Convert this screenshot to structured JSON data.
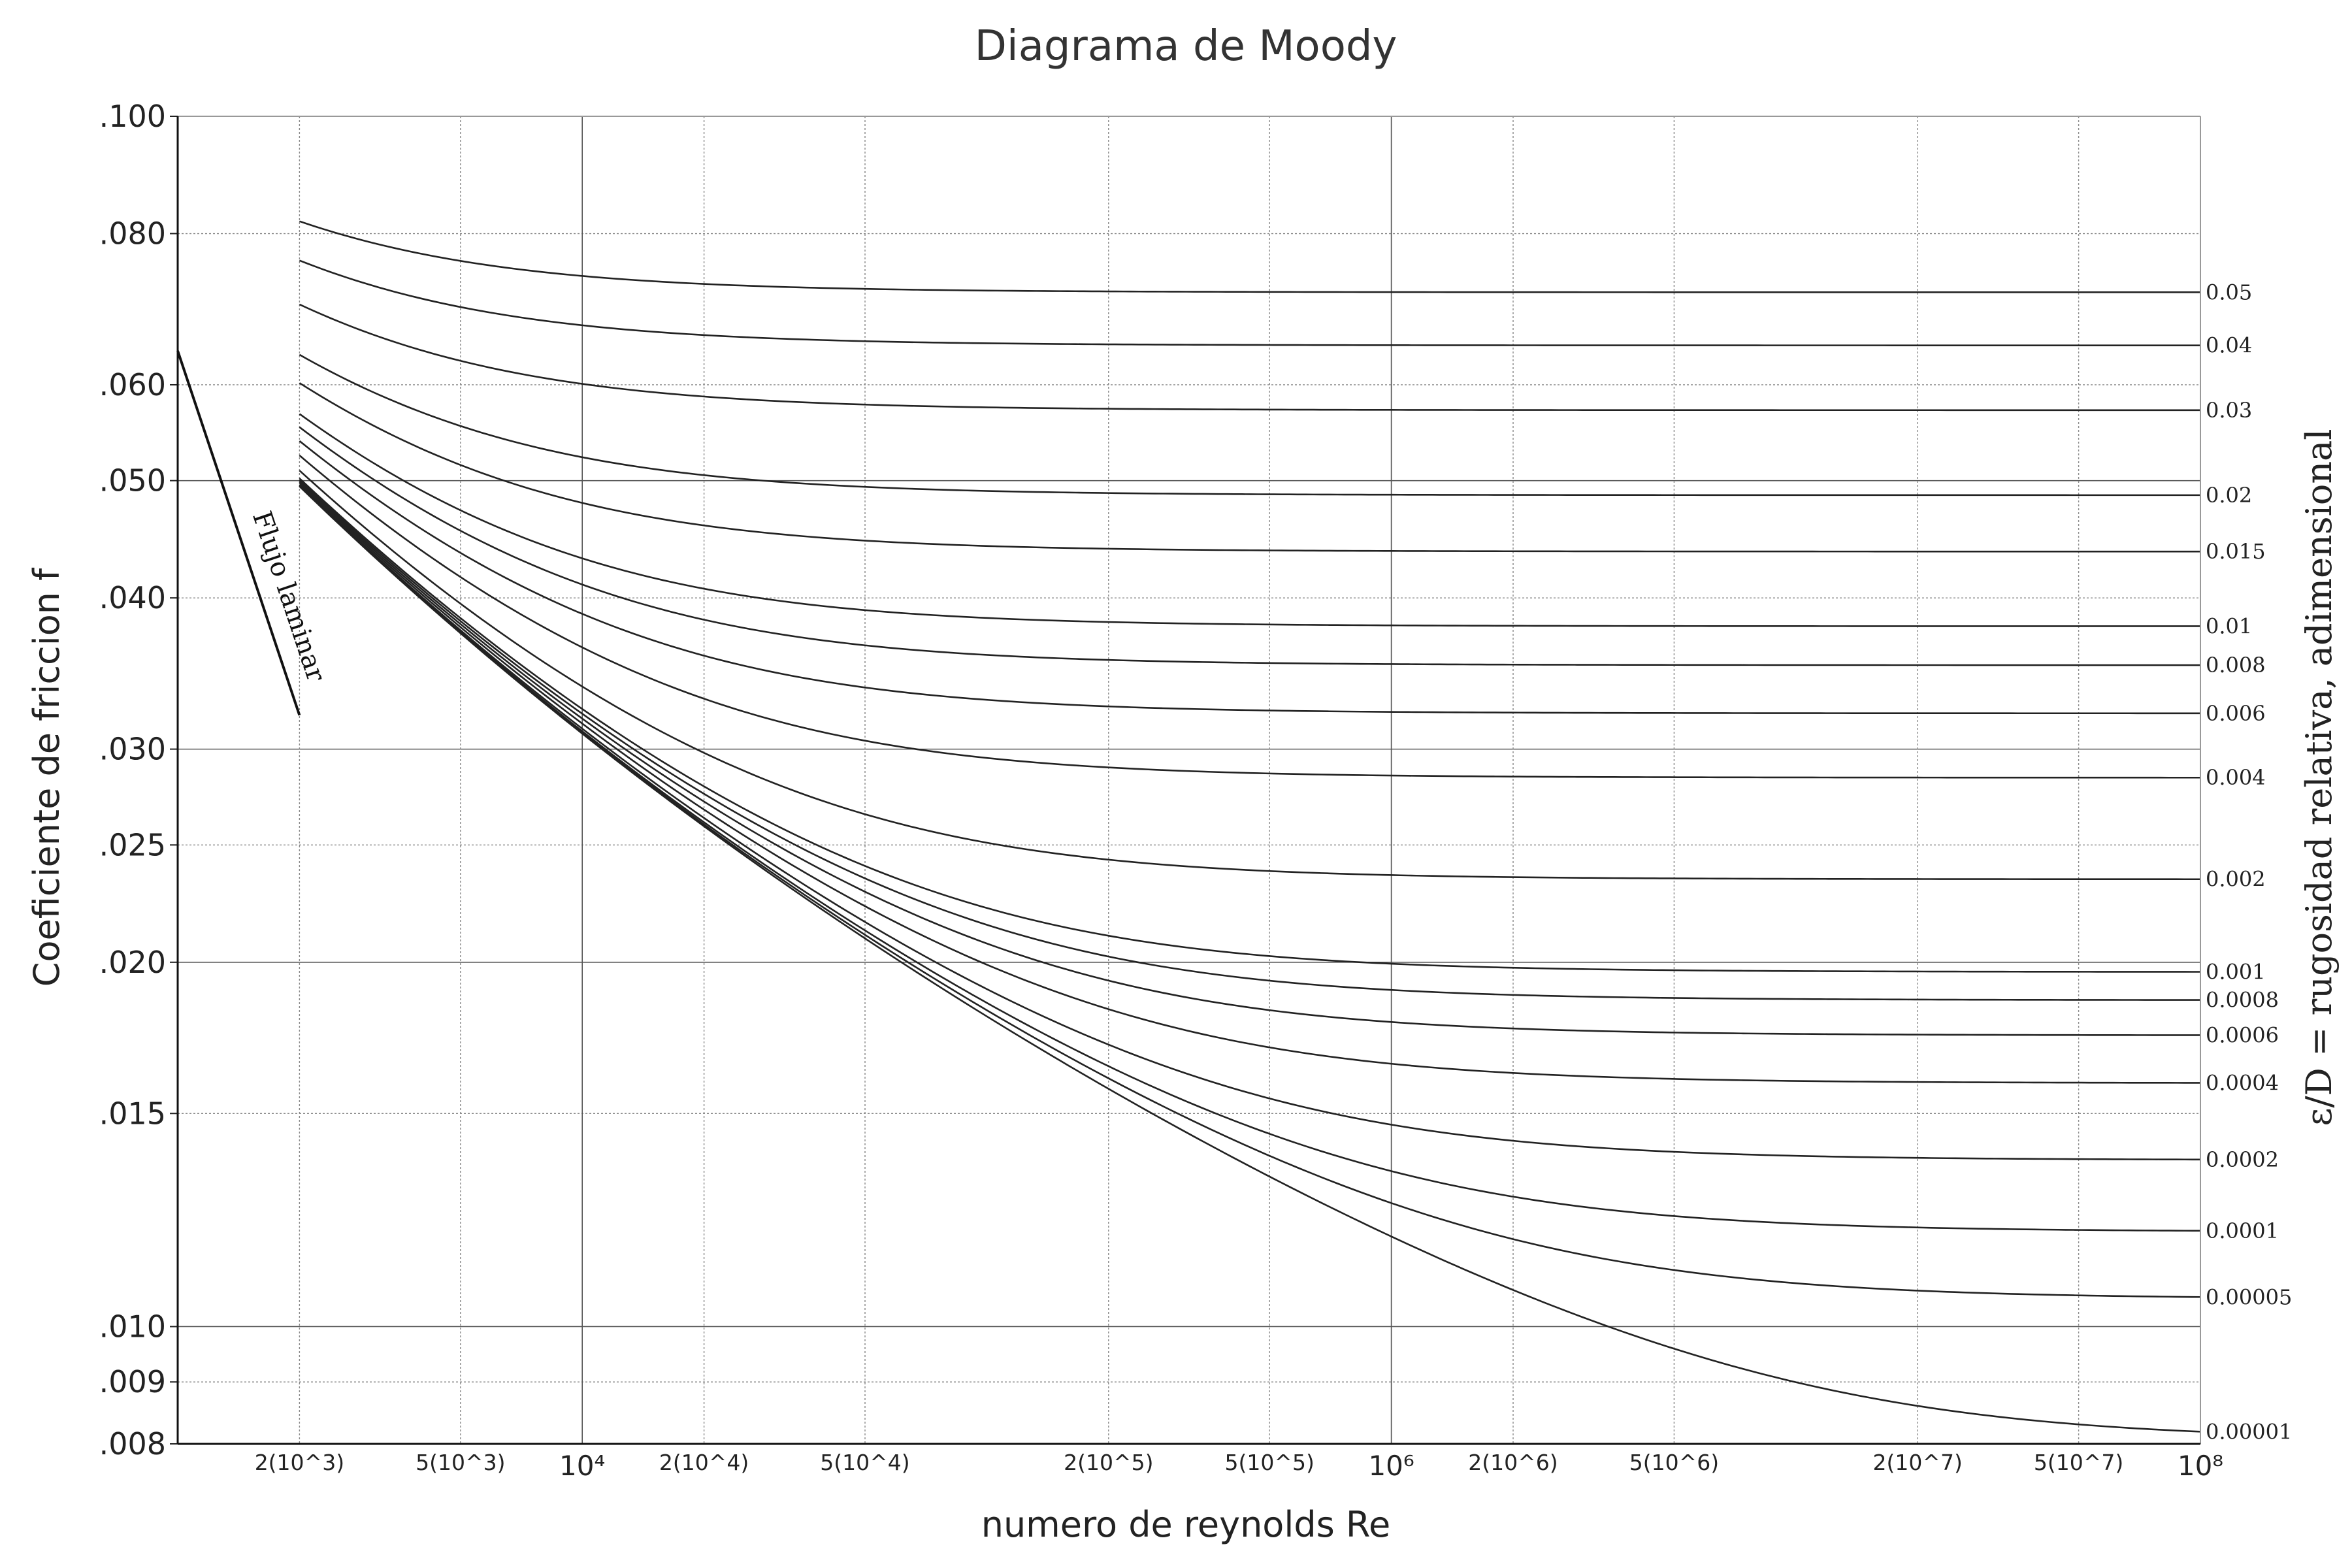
{
  "chart_data": {
    "type": "line",
    "title": "Diagrama de Moody",
    "xlabel": "numero de reynolds Re",
    "ylabel": "Coeficiente de friccion f",
    "ylabel_right": "ε/D = rugosidad relativa, adimensional",
    "x_scale": "log",
    "y_scale": "log",
    "xlim": [
      1000,
      100000000
    ],
    "ylim": [
      0.008,
      0.1
    ],
    "grid": true,
    "y_ticks": [
      {
        "value": 0.1,
        "label": ".100"
      },
      {
        "value": 0.08,
        "label": ".080"
      },
      {
        "value": 0.06,
        "label": ".060"
      },
      {
        "value": 0.05,
        "label": ".050"
      },
      {
        "value": 0.04,
        "label": ".040"
      },
      {
        "value": 0.03,
        "label": ".030"
      },
      {
        "value": 0.025,
        "label": ".025"
      },
      {
        "value": 0.02,
        "label": ".020"
      },
      {
        "value": 0.015,
        "label": ".015"
      },
      {
        "value": 0.01,
        "label": ".010"
      },
      {
        "value": 0.009,
        "label": ".009"
      },
      {
        "value": 0.008,
        "label": ".008"
      }
    ],
    "x_major_ticks": [
      {
        "value": 10000,
        "label": "10⁴"
      },
      {
        "value": 1000000,
        "label": "10⁶"
      },
      {
        "value": 100000000,
        "label": "10⁸"
      }
    ],
    "x_minor_ticks": [
      {
        "value": 2000,
        "label": "2(10^3)"
      },
      {
        "value": 5000,
        "label": "5(10^3)"
      },
      {
        "value": 20000,
        "label": "2(10^4)"
      },
      {
        "value": 50000,
        "label": "5(10^4)"
      },
      {
        "value": 200000,
        "label": "2(10^5)"
      },
      {
        "value": 500000,
        "label": "5(10^5)"
      },
      {
        "value": 2000000,
        "label": "2(10^6)"
      },
      {
        "value": 5000000,
        "label": "5(10^6)"
      },
      {
        "value": 20000000,
        "label": "2(10^7)"
      },
      {
        "value": 50000000,
        "label": "5(10^7)"
      }
    ],
    "x_major_grid": [
      10000,
      1000000
    ],
    "y_major_grid": [
      0.05,
      0.03,
      0.02,
      0.01
    ],
    "laminar": {
      "label": "Flujo laminar",
      "x": [
        1000,
        2000
      ],
      "y": [
        0.064,
        0.032
      ]
    },
    "turbulent_re_range": [
      2000,
      100000000
    ],
    "roughness": [
      {
        "value": 0.05,
        "label": "0.05"
      },
      {
        "value": 0.04,
        "label": "0.04"
      },
      {
        "value": 0.03,
        "label": "0.03"
      },
      {
        "value": 0.02,
        "label": "0.02"
      },
      {
        "value": 0.015,
        "label": "0.015"
      },
      {
        "value": 0.01,
        "label": "0.01"
      },
      {
        "value": 0.008,
        "label": "0.008"
      },
      {
        "value": 0.006,
        "label": "0.006"
      },
      {
        "value": 0.004,
        "label": "0.004"
      },
      {
        "value": 0.002,
        "label": "0.002"
      },
      {
        "value": 0.001,
        "label": "0.001"
      },
      {
        "value": 0.0008,
        "label": "0.0008"
      },
      {
        "value": 0.0006,
        "label": "0.0006"
      },
      {
        "value": 0.0004,
        "label": "0.0004"
      },
      {
        "value": 0.0002,
        "label": "0.0002"
      },
      {
        "value": 0.0001,
        "label": "0.0001"
      },
      {
        "value": 5e-05,
        "label": "0.00005"
      },
      {
        "value": 1e-05,
        "label": "0.00001"
      }
    ],
    "line_color": "#222222"
  }
}
